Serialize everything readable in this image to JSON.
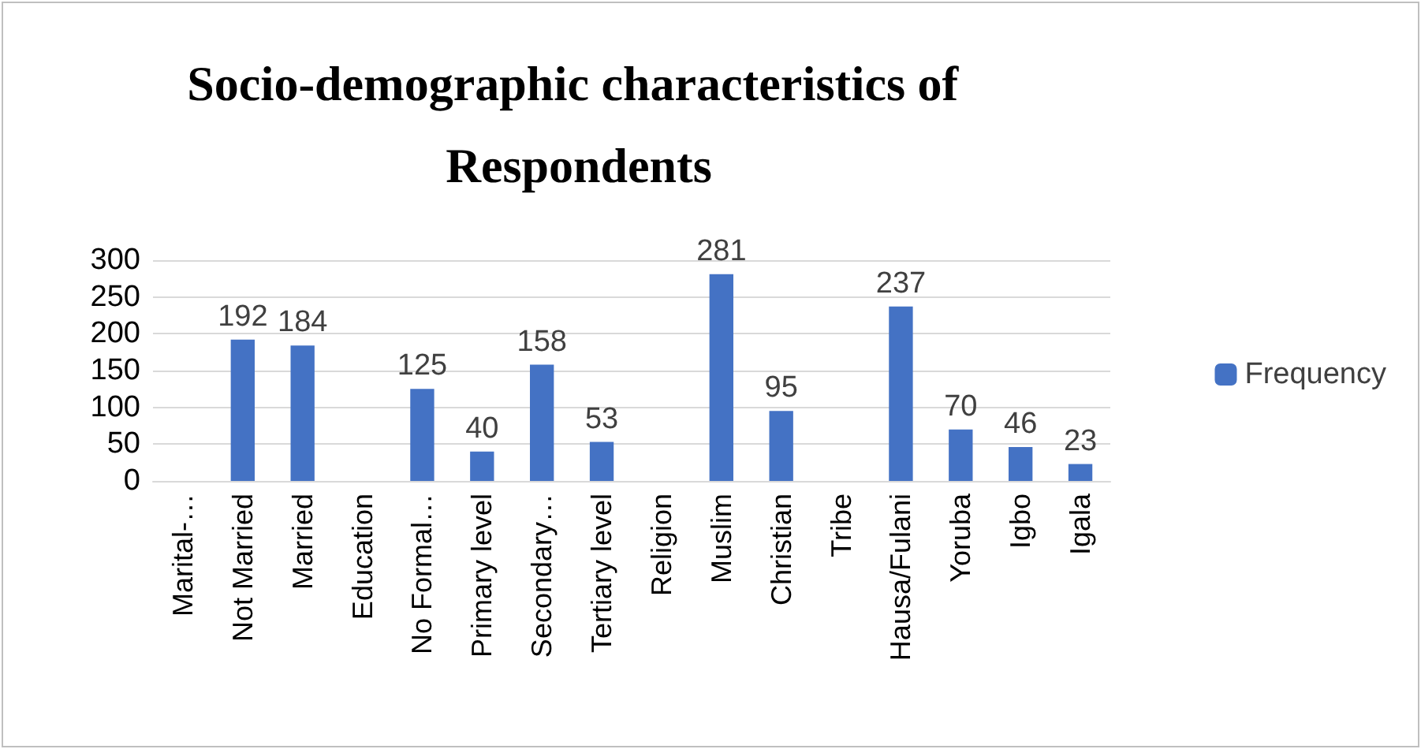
{
  "chart_data": {
    "type": "bar",
    "title": "Socio-demographic characteristics of Respondents",
    "categories": [
      "Marital-…",
      "Not Married",
      "Married",
      "Education",
      "No Formal…",
      "Primary level",
      "Secondary…",
      "Tertiary level",
      "Religion",
      "Muslim",
      "Christian",
      "Tribe",
      "Hausa/Fulani",
      "Yoruba",
      "Igbo",
      "Igala"
    ],
    "series": [
      {
        "name": "Frequency",
        "color": "#4472c4",
        "values": [
          null,
          192,
          184,
          null,
          125,
          40,
          158,
          53,
          null,
          281,
          95,
          null,
          237,
          70,
          46,
          23
        ]
      }
    ],
    "ylim": [
      0,
      300
    ],
    "yticks": [
      0,
      50,
      100,
      150,
      200,
      250,
      300
    ],
    "grid": "y",
    "legend": "right",
    "data_labels": true
  }
}
